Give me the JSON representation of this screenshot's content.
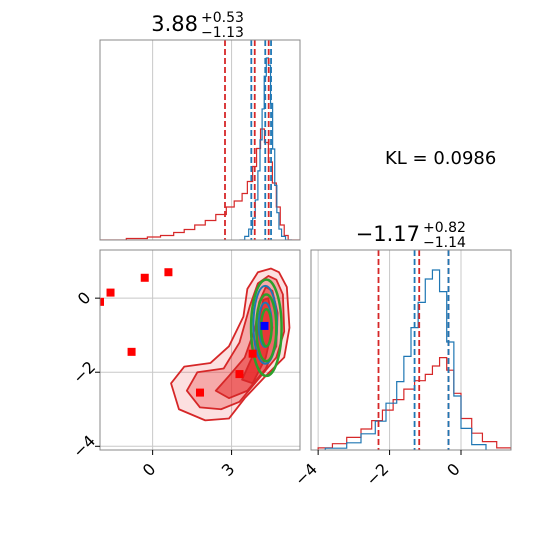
{
  "chart_data": [
    {
      "type": "histogram",
      "panel": "marginal-param-1",
      "title": "3.88",
      "title_sup": "+0.53",
      "title_sub": "−1.13",
      "xlim": [
        -2.0,
        5.6
      ],
      "grid": true,
      "red_quantiles": [
        2.75,
        3.88,
        4.41
      ],
      "blue_quantiles": [
        3.75,
        4.28,
        4.5
      ],
      "red_hist": {
        "edges": [
          -2.0,
          -1.0,
          -0.2,
          0.3,
          0.8,
          1.2,
          1.6,
          2.0,
          2.4,
          2.8,
          3.1,
          3.4,
          3.6,
          3.8,
          3.95,
          4.1,
          4.25,
          4.4,
          4.55,
          4.7,
          4.85,
          5.0,
          5.15,
          5.6
        ],
        "density": [
          0.0,
          0.01,
          0.02,
          0.03,
          0.05,
          0.07,
          0.1,
          0.13,
          0.17,
          0.22,
          0.26,
          0.31,
          0.39,
          0.49,
          0.61,
          0.74,
          0.65,
          0.52,
          0.38,
          0.22,
          0.1,
          0.03,
          0.0
        ]
      },
      "blue_hist": {
        "edges": [
          3.3,
          3.5,
          3.65,
          3.8,
          3.9,
          4.0,
          4.08,
          4.16,
          4.24,
          4.32,
          4.4,
          4.48,
          4.56,
          4.64,
          4.72,
          4.8,
          4.9,
          5.05,
          5.3
        ],
        "density": [
          0.0,
          0.02,
          0.06,
          0.12,
          0.22,
          0.38,
          0.55,
          0.72,
          0.9,
          1.0,
          0.96,
          0.75,
          0.5,
          0.3,
          0.15,
          0.06,
          0.02,
          0.0
        ]
      }
    },
    {
      "type": "histogram",
      "panel": "marginal-param-2",
      "title": "−1.17",
      "title_sup": "+0.82",
      "title_sub": "−1.14",
      "xlim": [
        -4.2,
        1.4
      ],
      "xticks": [
        -4,
        -2,
        0
      ],
      "xtick_labels": [
        "−4",
        "−2",
        "0"
      ],
      "grid": true,
      "red_quantiles": [
        -2.31,
        -1.17,
        -0.35
      ],
      "blue_quantiles": [
        -1.3,
        -0.35
      ],
      "red_hist": {
        "edges": [
          -4.0,
          -3.6,
          -3.2,
          -2.8,
          -2.5,
          -2.2,
          -1.9,
          -1.6,
          -1.3,
          -1.0,
          -0.8,
          -0.6,
          -0.4,
          -0.2,
          0.0,
          0.3,
          0.6,
          1.0,
          1.4
        ],
        "density": [
          0.01,
          0.03,
          0.06,
          0.1,
          0.14,
          0.19,
          0.24,
          0.29,
          0.33,
          0.36,
          0.4,
          0.44,
          0.38,
          0.27,
          0.15,
          0.08,
          0.04,
          0.01
        ]
      },
      "blue_hist": {
        "edges": [
          -3.8,
          -3.2,
          -2.8,
          -2.4,
          -2.1,
          -1.8,
          -1.6,
          -1.4,
          -1.2,
          -1.0,
          -0.8,
          -0.6,
          -0.4,
          -0.2,
          0.0,
          0.3,
          0.7
        ],
        "density": [
          0.01,
          0.04,
          0.09,
          0.16,
          0.26,
          0.38,
          0.52,
          0.68,
          0.82,
          0.95,
          1.0,
          0.88,
          0.6,
          0.3,
          0.12,
          0.03
        ]
      }
    },
    {
      "type": "contour-scatter",
      "panel": "joint",
      "xlim": [
        -2.0,
        5.6
      ],
      "ylim": [
        -4.1,
        1.3
      ],
      "xticks": [
        0,
        3
      ],
      "xtick_labels": [
        "0",
        "3"
      ],
      "yticks": [
        0,
        -2,
        -4
      ],
      "ytick_labels": [
        "0",
        "−2",
        "−4"
      ],
      "grid": true,
      "red_squares": [
        {
          "x": -2.0,
          "y": -0.1
        },
        {
          "x": -1.6,
          "y": 0.15
        },
        {
          "x": -0.3,
          "y": 0.55
        },
        {
          "x": 0.6,
          "y": 0.7
        },
        {
          "x": -0.8,
          "y": -1.45
        },
        {
          "x": 1.8,
          "y": -2.55
        },
        {
          "x": 3.3,
          "y": -2.05
        },
        {
          "x": 3.8,
          "y": -1.5
        }
      ],
      "blue_square": {
        "x": 4.25,
        "y": -0.75
      },
      "red_contours": [
        {
          "level": "outer",
          "points": [
            [
              4.8,
              0.7
            ],
            [
              5.1,
              0.3
            ],
            [
              5.2,
              -0.8
            ],
            [
              5.0,
              -1.6
            ],
            [
              4.3,
              -2.1
            ],
            [
              3.5,
              -2.7
            ],
            [
              2.9,
              -3.25
            ],
            [
              2.0,
              -3.3
            ],
            [
              1.0,
              -3.0
            ],
            [
              0.7,
              -2.3
            ],
            [
              1.2,
              -1.85
            ],
            [
              2.2,
              -1.75
            ],
            [
              2.9,
              -1.3
            ],
            [
              3.45,
              -0.5
            ],
            [
              3.6,
              0.25
            ],
            [
              4.0,
              0.7
            ],
            [
              4.5,
              0.8
            ]
          ]
        },
        {
          "level": "middle",
          "points": [
            [
              4.7,
              0.5
            ],
            [
              4.95,
              0.1
            ],
            [
              5.0,
              -0.9
            ],
            [
              4.7,
              -1.6
            ],
            [
              4.0,
              -2.2
            ],
            [
              3.3,
              -2.8
            ],
            [
              2.6,
              -3.0
            ],
            [
              1.8,
              -2.95
            ],
            [
              1.3,
              -2.5
            ],
            [
              1.7,
              -2.0
            ],
            [
              2.7,
              -1.9
            ],
            [
              3.3,
              -1.2
            ],
            [
              3.7,
              -0.2
            ],
            [
              4.0,
              0.4
            ],
            [
              4.4,
              0.6
            ]
          ]
        },
        {
          "level": "inner",
          "points": [
            [
              4.55,
              0.2
            ],
            [
              4.75,
              -0.4
            ],
            [
              4.7,
              -1.3
            ],
            [
              4.3,
              -1.9
            ],
            [
              3.6,
              -2.5
            ],
            [
              2.9,
              -2.7
            ],
            [
              2.4,
              -2.5
            ],
            [
              2.9,
              -2.1
            ],
            [
              3.5,
              -1.6
            ],
            [
              3.9,
              -0.8
            ],
            [
              4.05,
              -0.1
            ],
            [
              4.3,
              0.3
            ]
          ]
        },
        {
          "level": "core",
          "points": [
            [
              4.4,
              0.0
            ],
            [
              4.55,
              -0.8
            ],
            [
              4.3,
              -1.6
            ],
            [
              3.8,
              -2.3
            ],
            [
              3.4,
              -2.2
            ],
            [
              3.9,
              -1.4
            ],
            [
              4.05,
              -0.6
            ],
            [
              4.2,
              -0.05
            ]
          ]
        }
      ],
      "green_ellipses": [
        {
          "cx": 4.32,
          "cy": -0.8,
          "rx": 0.2,
          "ry": 0.5
        },
        {
          "cx": 4.32,
          "cy": -0.8,
          "rx": 0.38,
          "ry": 0.9
        },
        {
          "cx": 4.32,
          "cy": -0.8,
          "rx": 0.58,
          "ry": 1.3
        }
      ],
      "blue_ellipses": [
        {
          "cx": 4.28,
          "cy": -0.72,
          "rx": 0.25,
          "ry": 0.6
        },
        {
          "cx": 4.28,
          "cy": -0.72,
          "rx": 0.45,
          "ry": 1.05
        }
      ]
    }
  ],
  "annotation": {
    "kl_text": "KL = 0.0986"
  },
  "colors": {
    "red": "#d62728",
    "blue": "#1f77b4",
    "green": "#2ca02c",
    "red_fill": "#e83030",
    "grid": "#c8c8c8"
  }
}
